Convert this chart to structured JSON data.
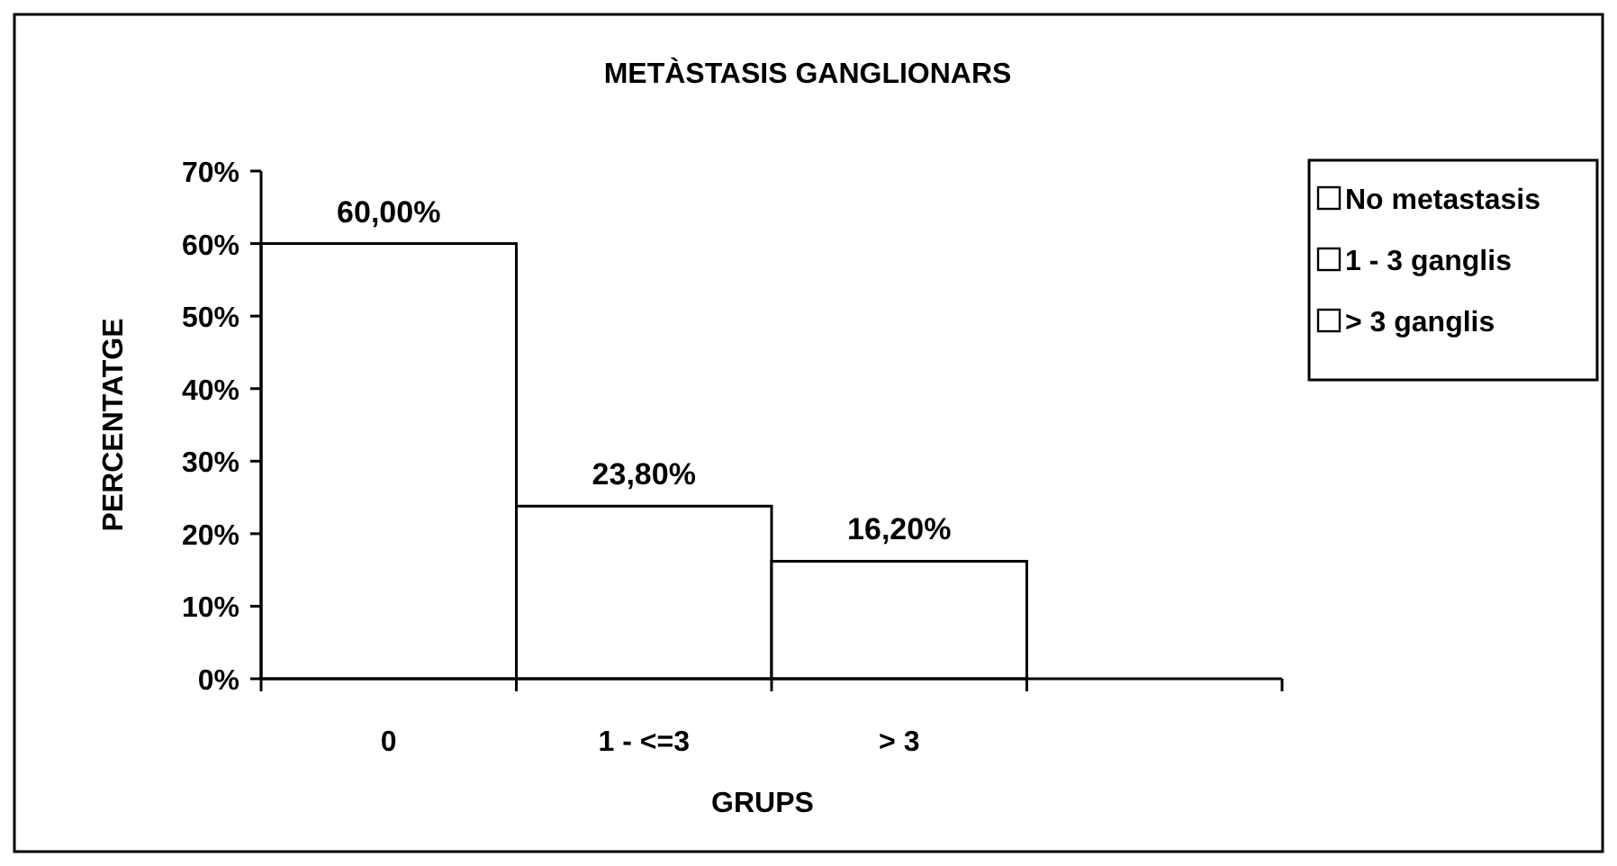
{
  "chart_data": {
    "type": "bar",
    "title": "METÀSTASIS GANGLIONARS",
    "xlabel": "GRUPS",
    "ylabel": "PERCENTATGE",
    "categories": [
      "0",
      "1 - <=3",
      "> 3",
      null
    ],
    "stacked": true,
    "series": [
      {
        "name": "No metastasis",
        "color": "#ffffff",
        "values": [
          60,
          null,
          null,
          null
        ],
        "value_labels": [
          "60,00%",
          null,
          null,
          null
        ]
      },
      {
        "name": "1 - 3 ganglis",
        "color": "#ffffff",
        "values": [
          null,
          23.8,
          null,
          null
        ],
        "value_labels": [
          null,
          "23,80%",
          null,
          null
        ]
      },
      {
        "name": "> 3 ganglis",
        "color": "#ffffff",
        "values": [
          null,
          null,
          16.2,
          null
        ],
        "value_labels": [
          null,
          null,
          "16,20%",
          null
        ]
      }
    ],
    "ylim": [
      0,
      70
    ],
    "yticks": [
      {
        "value": 0,
        "label": "0%"
      },
      {
        "value": 10,
        "label": "10%"
      },
      {
        "value": 20,
        "label": "20%"
      },
      {
        "value": 30,
        "label": "30%"
      },
      {
        "value": 40,
        "label": "40%"
      },
      {
        "value": 50,
        "label": "50%"
      },
      {
        "value": 60,
        "label": "60%"
      },
      {
        "value": 70,
        "label": "70%"
      }
    ],
    "legend": "right"
  }
}
